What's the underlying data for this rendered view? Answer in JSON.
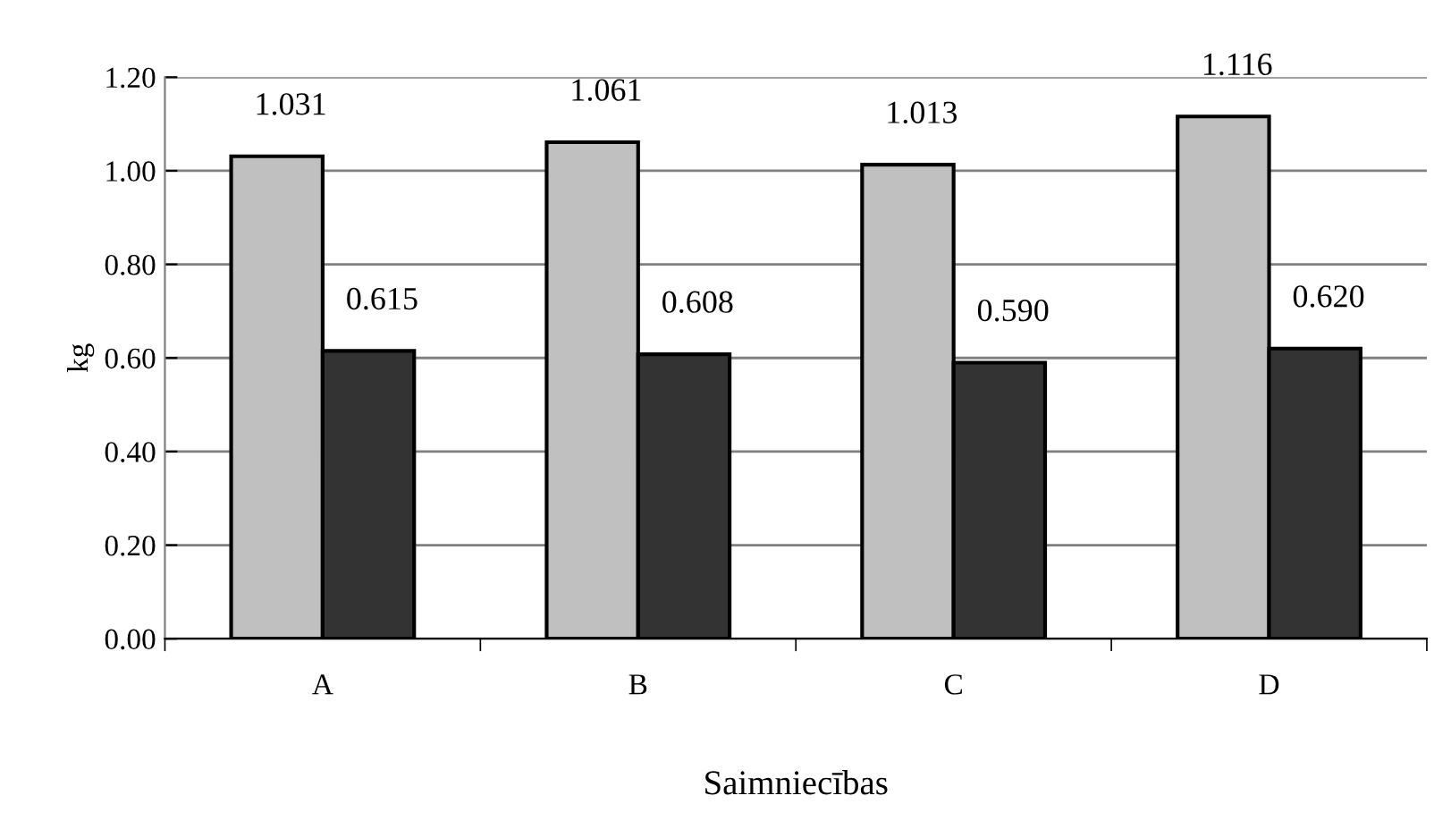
{
  "chart_data": {
    "type": "bar",
    "xlabel": "Saimniecības",
    "ylabel": "kg",
    "categories": [
      "A",
      "B",
      "C",
      "D"
    ],
    "series": [
      {
        "color": "#c0c0c0",
        "values": [
          1.031,
          1.061,
          1.013,
          1.116
        ],
        "value_labels": [
          "1.031",
          "1.061",
          "1.013",
          "1.116"
        ]
      },
      {
        "color": "#333333",
        "values": [
          0.615,
          0.608,
          0.59,
          0.62
        ],
        "value_labels": [
          "0.615",
          "0.608",
          "0.590",
          "0.620"
        ]
      }
    ],
    "ylim": [
      0,
      1.2
    ],
    "yticks": [
      {
        "value": 0,
        "label": "0.00"
      },
      {
        "value": 0.2,
        "label": "0.20"
      },
      {
        "value": 0.4,
        "label": "0.40"
      },
      {
        "value": 0.6,
        "label": "0.60"
      },
      {
        "value": 0.8,
        "label": "0.80"
      },
      {
        "value": 1.0,
        "label": "1.00"
      },
      {
        "value": 1.2,
        "label": "1.20"
      }
    ],
    "grid": "y"
  }
}
